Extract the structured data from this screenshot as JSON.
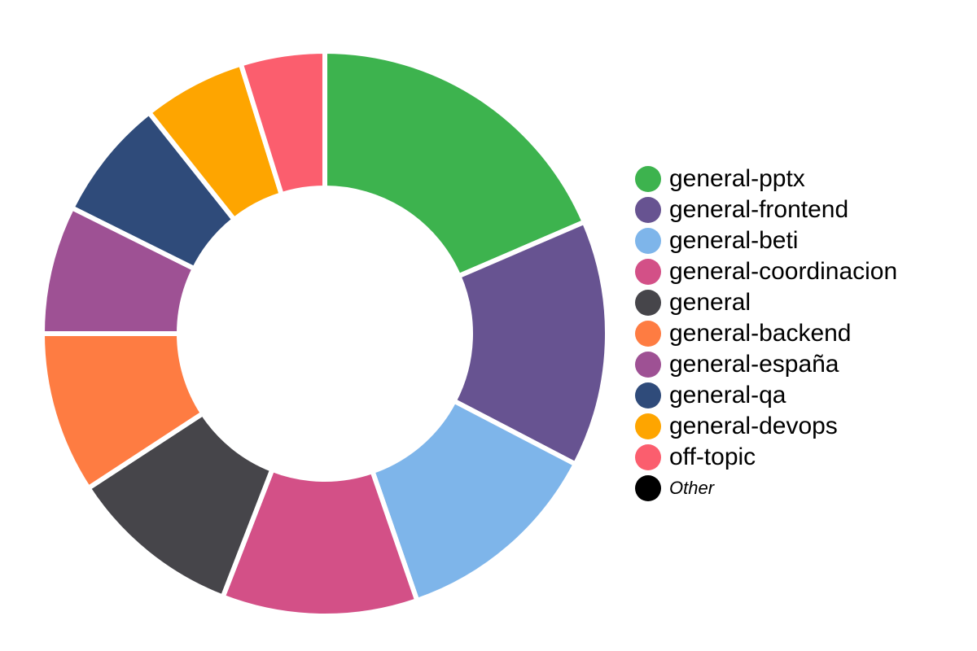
{
  "chart_data": {
    "type": "pie",
    "variant": "donut",
    "categories": [
      "general-pptx",
      "general-frontend",
      "general-beti",
      "general-coordinacion",
      "general",
      "general-backend",
      "general-españa",
      "general-qa",
      "general-devops",
      "off-topic",
      "Other"
    ],
    "values": [
      18.9,
      14.4,
      12.3,
      11.4,
      10.1,
      9.4,
      7.5,
      7.1,
      6.0,
      4.9,
      0
    ],
    "colors": [
      "#3db34e",
      "#675391",
      "#7eb5ea",
      "#d35087",
      "#46454a",
      "#fe7c42",
      "#9e5194",
      "#2f4b7a",
      "#fea500",
      "#fb5e6e",
      "#000000"
    ],
    "legend_position": "right"
  }
}
